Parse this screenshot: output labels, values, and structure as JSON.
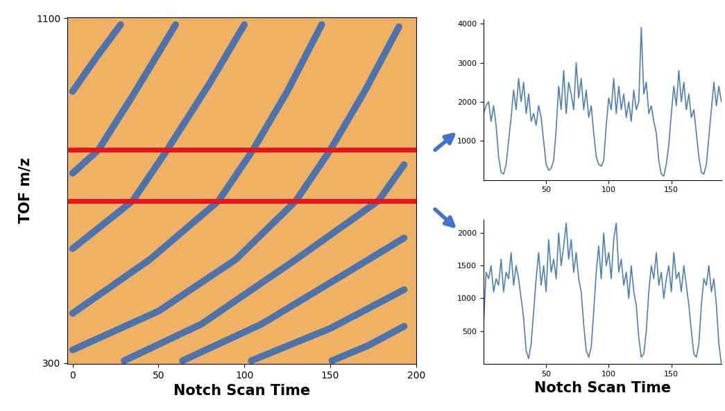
{
  "chart_data": [
    {
      "type": "line",
      "xlabel": "Notch Scan Time",
      "ylabel": "TOF m/z",
      "xlim": [
        -3,
        200
      ],
      "ylim": [
        298,
        1102
      ],
      "xticks": [
        0,
        50,
        100,
        150,
        200
      ],
      "yticks": [
        300,
        1100
      ],
      "series": [
        {
          "color": "#3b6db5",
          "x": [
            0,
            14,
            28
          ],
          "values": [
            930,
            1010,
            1085
          ]
        },
        {
          "color": "#3b6db5",
          "x": [
            0,
            15,
            35,
            60
          ],
          "values": [
            740,
            794,
            920,
            1085
          ]
        },
        {
          "color": "#3b6db5",
          "x": [
            0,
            35,
            55,
            80,
            100
          ],
          "values": [
            565,
            676,
            794,
            950,
            1085
          ]
        },
        {
          "color": "#3b6db5",
          "x": [
            0,
            45,
            85,
            105,
            125,
            145
          ],
          "values": [
            415,
            540,
            676,
            794,
            930,
            1085
          ]
        },
        {
          "color": "#3b6db5",
          "x": [
            0,
            50,
            95,
            130,
            150,
            170,
            190
          ],
          "values": [
            330,
            420,
            540,
            676,
            794,
            930,
            1080
          ]
        },
        {
          "color": "#3b6db5",
          "x": [
            30,
            75,
            130,
            178,
            193
          ],
          "values": [
            305,
            390,
            540,
            676,
            760
          ]
        },
        {
          "color": "#3b6db5",
          "x": [
            64,
            110,
            160,
            193
          ],
          "values": [
            305,
            390,
            510,
            590
          ]
        },
        {
          "color": "#3b6db5",
          "x": [
            104,
            150,
            193
          ],
          "values": [
            305,
            380,
            470
          ]
        },
        {
          "color": "#3b6db5",
          "x": [
            151,
            172,
            193
          ],
          "values": [
            305,
            340,
            385
          ]
        }
      ],
      "reference_lines": {
        "values": [
          794,
          676
        ],
        "color": "#e8141c"
      }
    },
    {
      "type": "line",
      "xlim": [
        0,
        190
      ],
      "ylim": [
        0,
        4100
      ],
      "xticks": [
        50,
        100,
        150
      ],
      "yticks": [
        1000,
        2000,
        3000,
        4000
      ],
      "x": [
        0,
        2,
        4,
        6,
        8,
        10,
        12,
        14,
        16,
        18,
        20,
        22,
        24,
        26,
        28,
        30,
        32,
        34,
        36,
        38,
        40,
        42,
        44,
        46,
        48,
        50,
        52,
        54,
        56,
        58,
        60,
        62,
        64,
        66,
        68,
        70,
        72,
        74,
        76,
        78,
        80,
        82,
        84,
        86,
        88,
        90,
        92,
        94,
        96,
        98,
        100,
        102,
        104,
        106,
        108,
        110,
        112,
        114,
        116,
        118,
        120,
        122,
        124,
        126,
        128,
        130,
        132,
        134,
        136,
        138,
        140,
        142,
        144,
        146,
        148,
        150,
        152,
        154,
        156,
        158,
        160,
        162,
        164,
        166,
        168,
        170,
        172,
        174,
        176,
        178,
        180,
        182,
        184,
        186,
        188,
        190
      ],
      "series": [
        {
          "color": "#4f7fb8",
          "values": [
            1700,
            1900,
            2000,
            1500,
            1900,
            1400,
            600,
            200,
            150,
            400,
            1000,
            1600,
            2300,
            1800,
            2600,
            2000,
            2500,
            1700,
            2200,
            1500,
            1700,
            1400,
            1900,
            1600,
            1000,
            400,
            250,
            300,
            500,
            1300,
            2400,
            1800,
            2800,
            1700,
            2500,
            2200,
            1800,
            3000,
            2100,
            2600,
            1800,
            2300,
            1600,
            1900,
            1200,
            600,
            400,
            350,
            500,
            1400,
            2100,
            1800,
            2600,
            1700,
            2400,
            1800,
            2200,
            1600,
            2000,
            1500,
            2300,
            1800,
            2000,
            3900,
            2200,
            2500,
            1700,
            1900,
            1500,
            1200,
            500,
            150,
            100,
            400,
            900,
            1700,
            2400,
            1900,
            2800,
            2000,
            2500,
            1800,
            2200,
            1600,
            1800,
            1200,
            600,
            200,
            150,
            400,
            1100,
            1800,
            2500,
            1900,
            2400,
            2000
          ]
        }
      ]
    },
    {
      "type": "line",
      "xlabel": "Notch Scan Time",
      "xlim": [
        0,
        190
      ],
      "ylim": [
        0,
        2200
      ],
      "xticks": [
        50,
        100,
        150
      ],
      "yticks": [
        500,
        1000,
        1500,
        2000
      ],
      "x": [
        0,
        2,
        4,
        6,
        8,
        10,
        12,
        14,
        16,
        18,
        20,
        22,
        24,
        26,
        28,
        30,
        32,
        34,
        36,
        38,
        40,
        42,
        44,
        46,
        48,
        50,
        52,
        54,
        56,
        58,
        60,
        62,
        64,
        66,
        68,
        70,
        72,
        74,
        76,
        78,
        80,
        82,
        84,
        86,
        88,
        90,
        92,
        94,
        96,
        98,
        100,
        102,
        104,
        106,
        108,
        110,
        112,
        114,
        116,
        118,
        120,
        122,
        124,
        126,
        128,
        130,
        132,
        134,
        136,
        138,
        140,
        142,
        144,
        146,
        148,
        150,
        152,
        154,
        156,
        158,
        160,
        162,
        164,
        166,
        168,
        170,
        172,
        174,
        176,
        178,
        180,
        182,
        184,
        186,
        188,
        190
      ],
      "series": [
        {
          "color": "#4f7fb8",
          "values": [
            600,
            1400,
            1300,
            1500,
            1100,
            1300,
            1200,
            1600,
            1100,
            1400,
            1300,
            1700,
            1200,
            1500,
            1300,
            1000,
            700,
            200,
            80,
            300,
            800,
            1300,
            1700,
            1200,
            1500,
            1100,
            1900,
            1400,
            1600,
            1300,
            2000,
            1500,
            1800,
            2150,
            1600,
            1900,
            1400,
            1700,
            1300,
            1100,
            600,
            200,
            100,
            250,
            800,
            1400,
            1800,
            1300,
            2000,
            1500,
            1700,
            1300,
            1900,
            2150,
            1400,
            1600,
            1200,
            1400,
            1000,
            1500,
            1100,
            900,
            400,
            100,
            150,
            500,
            1100,
            1500,
            1300,
            1700,
            1200,
            1400,
            1000,
            1300,
            1500,
            1100,
            1700,
            1300,
            1400,
            1100,
            1500,
            1200,
            900,
            500,
            150,
            100,
            300,
            900,
            1300,
            1200,
            1500,
            1100,
            1300,
            900,
            300,
            0
          ]
        }
      ]
    }
  ]
}
